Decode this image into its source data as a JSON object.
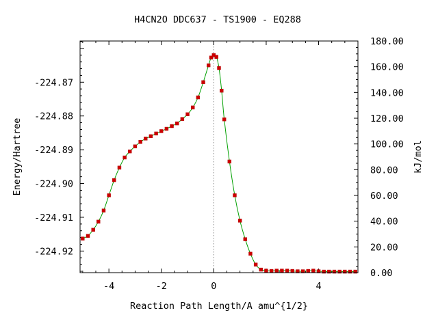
{
  "chart_data": {
    "type": "line",
    "title": "H4CN2O   DDC637 - TS1900 - EQ288",
    "xlabel": "Reaction Path Length/A amu^{1/2}",
    "ylabel": "Energy/Hartree",
    "y2label": "kJ/mol",
    "xlim": [
      -5.1,
      5.5
    ],
    "ylim": [
      -224.9264,
      -224.8578
    ],
    "y2lim": [
      0,
      180
    ],
    "xticks": [
      "-4",
      "-2",
      "0",
      "4"
    ],
    "xtick_values": [
      -4,
      -2,
      0,
      4
    ],
    "yticks": [
      "-224.87",
      "-224.88",
      "-224.89",
      "-224.90",
      "-224.91",
      "-224.92"
    ],
    "ytick_values": [
      -224.87,
      -224.88,
      -224.89,
      -224.9,
      -224.91,
      -224.92
    ],
    "y2ticks": [
      "0.00",
      "20.00",
      "40.00",
      "60.00",
      "80.00",
      "100.00",
      "120.00",
      "140.00",
      "160.00",
      "180.00"
    ],
    "y2tick_values": [
      0,
      20,
      40,
      60,
      80,
      100,
      120,
      140,
      160,
      180
    ],
    "ts_x": 0,
    "grid": false,
    "colors": {
      "curve": "#00a000",
      "points": "#cc0000",
      "ts_line": "#888888"
    },
    "series": [
      {
        "x": [
          -5.0,
          -4.8,
          -4.6,
          -4.4,
          -4.2,
          -4.0,
          -3.8,
          -3.6,
          -3.4,
          -3.2,
          -3.0,
          -2.8,
          -2.6,
          -2.4,
          -2.2,
          -2.0,
          -1.8,
          -1.6,
          -1.4,
          -1.2,
          -1.0,
          -0.8,
          -0.6,
          -0.4,
          -0.2,
          -0.1,
          0.0,
          0.1,
          0.2,
          0.3,
          0.4,
          0.6,
          0.8,
          1.0,
          1.2,
          1.4,
          1.6,
          1.8,
          2.0,
          2.2,
          2.4,
          2.6,
          2.8,
          3.0,
          3.2,
          3.4,
          3.6,
          3.8,
          4.0,
          4.2,
          4.4,
          4.6,
          4.8,
          5.0,
          5.2,
          5.4
        ],
        "y": [
          -224.9163,
          -224.9155,
          -224.9137,
          -224.9113,
          -224.908,
          -224.9035,
          -224.899,
          -224.8953,
          -224.8923,
          -224.8905,
          -224.889,
          -224.8877,
          -224.8867,
          -224.886,
          -224.8852,
          -224.8845,
          -224.8838,
          -224.883,
          -224.8822,
          -224.8809,
          -224.8795,
          -224.8775,
          -224.8745,
          -224.87,
          -224.865,
          -224.8627,
          -224.862,
          -224.8625,
          -224.8658,
          -224.8725,
          -224.881,
          -224.8935,
          -224.9035,
          -224.911,
          -224.9165,
          -224.9208,
          -224.924,
          -224.9255,
          -224.9258,
          -224.9259,
          -224.9258,
          -224.9258,
          -224.9258,
          -224.9259,
          -224.926,
          -224.926,
          -224.9259,
          -224.9258,
          -224.926,
          -224.9261,
          -224.9261,
          -224.9261,
          -224.9261,
          -224.9261,
          -224.9261,
          -224.9261
        ]
      }
    ]
  }
}
